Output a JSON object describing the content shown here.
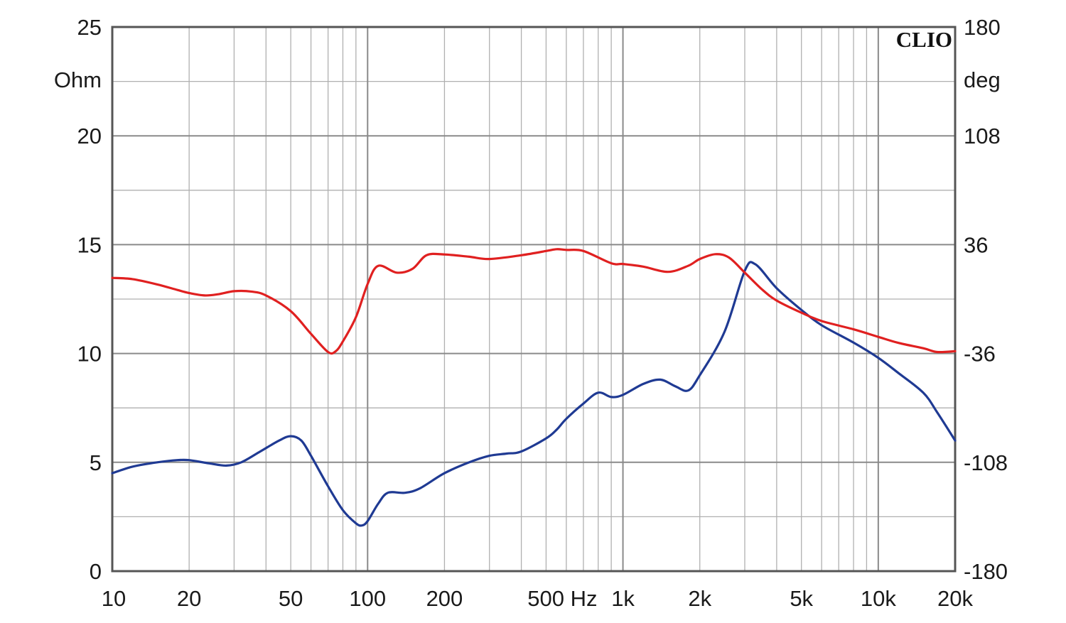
{
  "chart_data": {
    "type": "line",
    "logo": "CLIO",
    "x_scale": "log",
    "xlim": [
      10,
      20000
    ],
    "x_ticks": [
      {
        "value": 10,
        "label": "10"
      },
      {
        "value": 20,
        "label": "20"
      },
      {
        "value": 50,
        "label": "50"
      },
      {
        "value": 100,
        "label": "100"
      },
      {
        "value": 200,
        "label": "200"
      },
      {
        "value": 500,
        "label": "500 Hz"
      },
      {
        "value": 1000,
        "label": "1k"
      },
      {
        "value": 2000,
        "label": "2k"
      },
      {
        "value": 5000,
        "label": "5k"
      },
      {
        "value": 10000,
        "label": "10k"
      },
      {
        "value": 20000,
        "label": "20k"
      }
    ],
    "y_left": {
      "unit": "Ohm",
      "ylim": [
        0,
        25
      ],
      "ticks": [
        "0",
        "5",
        "10",
        "15",
        "20",
        "25"
      ]
    },
    "y_right": {
      "unit": "deg",
      "ylim": [
        -180,
        180
      ],
      "ticks": [
        "-180",
        "-108",
        "-36",
        "36",
        "108",
        "180"
      ]
    },
    "grid": true,
    "series": [
      {
        "axis": "left",
        "color": "#1f3a93",
        "points": [
          [
            10,
            4.5
          ],
          [
            12,
            4.8
          ],
          [
            15,
            5.0
          ],
          [
            18,
            5.1
          ],
          [
            20,
            5.1
          ],
          [
            24,
            4.95
          ],
          [
            28,
            4.85
          ],
          [
            32,
            5.0
          ],
          [
            38,
            5.5
          ],
          [
            45,
            6.0
          ],
          [
            50,
            6.2
          ],
          [
            55,
            6.0
          ],
          [
            60,
            5.3
          ],
          [
            70,
            3.9
          ],
          [
            80,
            2.8
          ],
          [
            90,
            2.2
          ],
          [
            95,
            2.1
          ],
          [
            100,
            2.3
          ],
          [
            110,
            3.1
          ],
          [
            120,
            3.6
          ],
          [
            140,
            3.6
          ],
          [
            160,
            3.8
          ],
          [
            200,
            4.5
          ],
          [
            250,
            5.0
          ],
          [
            300,
            5.3
          ],
          [
            350,
            5.4
          ],
          [
            400,
            5.5
          ],
          [
            500,
            6.1
          ],
          [
            550,
            6.5
          ],
          [
            600,
            7.0
          ],
          [
            700,
            7.7
          ],
          [
            800,
            8.2
          ],
          [
            900,
            8.0
          ],
          [
            1000,
            8.1
          ],
          [
            1200,
            8.6
          ],
          [
            1400,
            8.8
          ],
          [
            1600,
            8.5
          ],
          [
            1800,
            8.3
          ],
          [
            2000,
            9.0
          ],
          [
            2500,
            11.0
          ],
          [
            3000,
            13.8
          ],
          [
            3300,
            14.1
          ],
          [
            4000,
            13.0
          ],
          [
            5000,
            12.0
          ],
          [
            6000,
            11.3
          ],
          [
            8000,
            10.5
          ],
          [
            10000,
            9.8
          ],
          [
            12000,
            9.1
          ],
          [
            15000,
            8.2
          ],
          [
            17000,
            7.3
          ],
          [
            20000,
            6.0
          ]
        ]
      },
      {
        "axis": "right",
        "color": "#e02020",
        "points": [
          [
            10,
            14.0
          ],
          [
            12,
            13.2
          ],
          [
            15,
            9.7
          ],
          [
            18,
            6.0
          ],
          [
            20,
            4.0
          ],
          [
            23,
            2.4
          ],
          [
            26,
            3.2
          ],
          [
            30,
            5.2
          ],
          [
            35,
            5.0
          ],
          [
            40,
            2.4
          ],
          [
            50,
            -8.0
          ],
          [
            60,
            -23.0
          ],
          [
            70,
            -35.0
          ],
          [
            75,
            -34.5
          ],
          [
            80,
            -28.0
          ],
          [
            90,
            -12.0
          ],
          [
            100,
            10.0
          ],
          [
            110,
            22.0
          ],
          [
            130,
            17.5
          ],
          [
            150,
            20.0
          ],
          [
            170,
            29.0
          ],
          [
            200,
            29.5
          ],
          [
            250,
            28.0
          ],
          [
            300,
            26.5
          ],
          [
            400,
            29.0
          ],
          [
            500,
            31.8
          ],
          [
            550,
            33.0
          ],
          [
            600,
            32.5
          ],
          [
            700,
            31.8
          ],
          [
            900,
            23.7
          ],
          [
            1000,
            23.2
          ],
          [
            1200,
            21.5
          ],
          [
            1500,
            18.0
          ],
          [
            1800,
            22.0
          ],
          [
            2000,
            26.5
          ],
          [
            2300,
            29.7
          ],
          [
            2600,
            27.5
          ],
          [
            3000,
            17.5
          ],
          [
            3500,
            6.5
          ],
          [
            4000,
            -1.0
          ],
          [
            5000,
            -9.0
          ],
          [
            6000,
            -14.5
          ],
          [
            8000,
            -20.0
          ],
          [
            10000,
            -25.0
          ],
          [
            12000,
            -29.0
          ],
          [
            15000,
            -32.5
          ],
          [
            17000,
            -35.0
          ],
          [
            20000,
            -34.5
          ]
        ]
      }
    ]
  }
}
